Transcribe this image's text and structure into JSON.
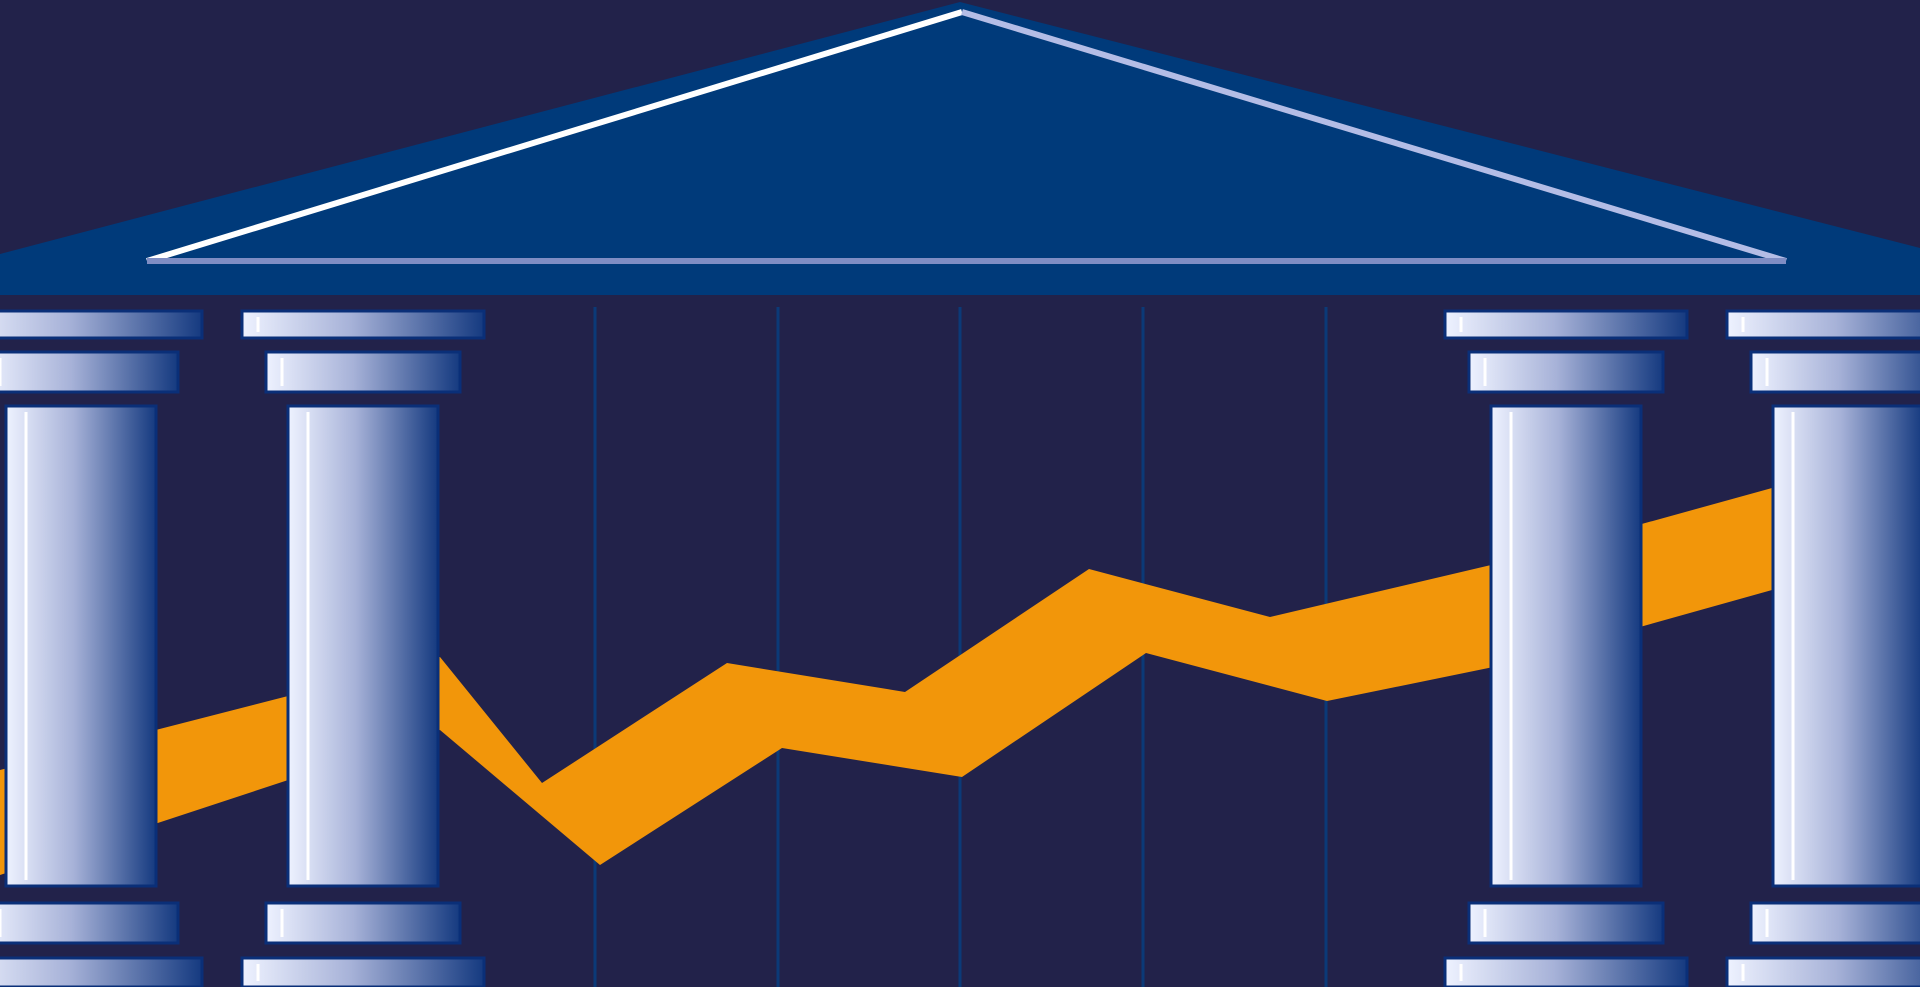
{
  "illustration": {
    "subject": "bank-building-with-rising-trend-line",
    "colors": {
      "background": "#22224a",
      "roof": "#003a7a",
      "roof_outline": "#e8ecff",
      "gridline": "#0b3a78",
      "trend_band": "#f2960a",
      "column_light": "#eef2ff",
      "column_dark": "#0e2f78",
      "column_border": "#0a2f78"
    },
    "columns_visible": 4,
    "trend_direction": "rising"
  }
}
